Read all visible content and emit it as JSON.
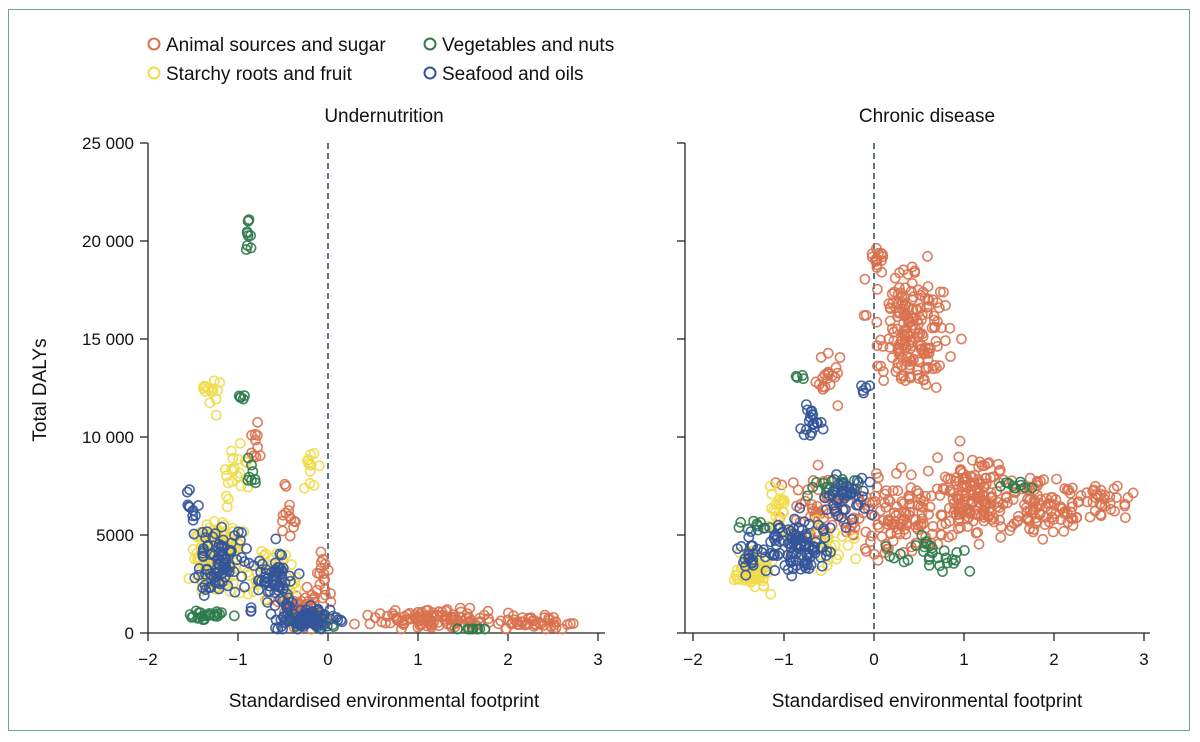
{
  "legend": [
    {
      "label": "Animal sources and sugar",
      "color": "#d9714e"
    },
    {
      "label": "Vegetables and nuts",
      "color": "#2e7a4a"
    },
    {
      "label": "Starchy roots and fruit",
      "color": "#f0dc4a"
    },
    {
      "label": "Seafood and oils",
      "color": "#33549a"
    }
  ],
  "chart_data": [
    {
      "type": "scatter",
      "title": "Undernutrition",
      "xlabel": "Standardised environmental footprint",
      "ylabel": "Total DALYs",
      "xlim": [
        -2,
        3.1
      ],
      "ylim": [
        0,
        25000
      ],
      "xticks": [
        "−2",
        "−1",
        "0",
        "1",
        "2",
        "3"
      ],
      "yticks": [
        "0",
        "5000",
        "10 000",
        "15 000",
        "20 000",
        "25 000"
      ],
      "reference_line_x": 0,
      "grid": false,
      "series": [
        {
          "name": "Animal sources and sugar",
          "clusters": [
            {
              "center": [
                -0.3,
                1200
              ],
              "spread": [
                0.25,
                900
              ],
              "n": 60
            },
            {
              "center": [
                1.2,
                700
              ],
              "spread": [
                0.6,
                400
              ],
              "n": 110
            },
            {
              "center": [
                2.3,
                500
              ],
              "spread": [
                0.35,
                350
              ],
              "n": 45
            },
            {
              "center": [
                -0.8,
                9800
              ],
              "spread": [
                0.06,
                900
              ],
              "n": 10
            },
            {
              "center": [
                -0.45,
                6000
              ],
              "spread": [
                0.1,
                1200
              ],
              "n": 14
            },
            {
              "center": [
                -0.05,
                3000
              ],
              "spread": [
                0.08,
                1200
              ],
              "n": 16
            }
          ]
        },
        {
          "name": "Vegetables and nuts",
          "clusters": [
            {
              "center": [
                -0.88,
                20300
              ],
              "spread": [
                0.03,
                1000
              ],
              "n": 10
            },
            {
              "center": [
                -0.95,
                12100
              ],
              "spread": [
                0.04,
                150
              ],
              "n": 5
            },
            {
              "center": [
                -0.85,
                8000
              ],
              "spread": [
                0.05,
                900
              ],
              "n": 8
            },
            {
              "center": [
                -1.3,
                900
              ],
              "spread": [
                0.2,
                300
              ],
              "n": 25
            },
            {
              "center": [
                -0.2,
                600
              ],
              "spread": [
                0.3,
                400
              ],
              "n": 25
            },
            {
              "center": [
                1.6,
                150
              ],
              "spread": [
                0.2,
                80
              ],
              "n": 10
            }
          ]
        },
        {
          "name": "Starchy roots and fruit",
          "clusters": [
            {
              "center": [
                -1.25,
                3800
              ],
              "spread": [
                0.22,
                1500
              ],
              "n": 160
            },
            {
              "center": [
                -1.3,
                12200
              ],
              "spread": [
                0.12,
                900
              ],
              "n": 14
            },
            {
              "center": [
                -1.05,
                8200
              ],
              "spread": [
                0.12,
                1300
              ],
              "n": 20
            },
            {
              "center": [
                -0.2,
                8200
              ],
              "spread": [
                0.08,
                1300
              ],
              "n": 12
            },
            {
              "center": [
                -0.6,
                3000
              ],
              "spread": [
                0.2,
                1300
              ],
              "n": 40
            }
          ]
        },
        {
          "name": "Seafood and oils",
          "clusters": [
            {
              "center": [
                -1.2,
                3600
              ],
              "spread": [
                0.25,
                1600
              ],
              "n": 90
            },
            {
              "center": [
                -0.6,
                2600
              ],
              "spread": [
                0.25,
                1300
              ],
              "n": 70
            },
            {
              "center": [
                -0.2,
                700
              ],
              "spread": [
                0.3,
                500
              ],
              "n": 80
            },
            {
              "center": [
                -1.5,
                6500
              ],
              "spread": [
                0.05,
                700
              ],
              "n": 10
            }
          ]
        }
      ]
    },
    {
      "type": "scatter",
      "title": "Chronic disease",
      "xlabel": "Standardised environmental footprint",
      "ylabel": "",
      "xlim": [
        -2,
        3.1
      ],
      "ylim": [
        0,
        25000
      ],
      "xticks": [
        "−2",
        "−1",
        "0",
        "1",
        "2",
        "3"
      ],
      "reference_line_x": 0,
      "grid": false,
      "series": [
        {
          "name": "Animal sources and sugar",
          "clusters": [
            {
              "center": [
                0.4,
                15500
              ],
              "spread": [
                0.35,
                2600
              ],
              "n": 180
            },
            {
              "center": [
                0.05,
                19000
              ],
              "spread": [
                0.1,
                700
              ],
              "n": 15
            },
            {
              "center": [
                1.1,
                7000
              ],
              "spread": [
                0.35,
                1700
              ],
              "n": 150
            },
            {
              "center": [
                1.9,
                6500
              ],
              "spread": [
                0.4,
                1400
              ],
              "n": 90
            },
            {
              "center": [
                2.5,
                6800
              ],
              "spread": [
                0.3,
                900
              ],
              "n": 35
            },
            {
              "center": [
                0.3,
                6000
              ],
              "spread": [
                0.5,
                1800
              ],
              "n": 120
            },
            {
              "center": [
                -0.6,
                6500
              ],
              "spread": [
                0.4,
                1600
              ],
              "n": 60
            },
            {
              "center": [
                -0.5,
                13000
              ],
              "spread": [
                0.15,
                1500
              ],
              "n": 20
            }
          ]
        },
        {
          "name": "Vegetables and nuts",
          "clusters": [
            {
              "center": [
                -0.85,
                13100
              ],
              "spread": [
                0.06,
                300
              ],
              "n": 4
            },
            {
              "center": [
                -0.4,
                7500
              ],
              "spread": [
                0.3,
                400
              ],
              "n": 20
            },
            {
              "center": [
                0.6,
                4000
              ],
              "spread": [
                0.4,
                800
              ],
              "n": 30
            },
            {
              "center": [
                1.6,
                7500
              ],
              "spread": [
                0.15,
                200
              ],
              "n": 10
            },
            {
              "center": [
                -1.3,
                5500
              ],
              "spread": [
                0.15,
                300
              ],
              "n": 10
            }
          ]
        },
        {
          "name": "Starchy roots and fruit",
          "clusters": [
            {
              "center": [
                -1.35,
                3200
              ],
              "spread": [
                0.15,
                700
              ],
              "n": 90
            },
            {
              "center": [
                -1.05,
                6000
              ],
              "spread": [
                0.1,
                1500
              ],
              "n": 25
            },
            {
              "center": [
                -0.55,
                4500
              ],
              "spread": [
                0.2,
                1000
              ],
              "n": 30
            }
          ]
        },
        {
          "name": "Seafood and oils",
          "clusters": [
            {
              "center": [
                -0.85,
                4500
              ],
              "spread": [
                0.35,
                1200
              ],
              "n": 110
            },
            {
              "center": [
                -0.7,
                10800
              ],
              "spread": [
                0.1,
                800
              ],
              "n": 20
            },
            {
              "center": [
                -0.1,
                12500
              ],
              "spread": [
                0.05,
                500
              ],
              "n": 5
            },
            {
              "center": [
                -0.3,
                7000
              ],
              "spread": [
                0.25,
                1200
              ],
              "n": 40
            },
            {
              "center": [
                -1.4,
                4000
              ],
              "spread": [
                0.1,
                900
              ],
              "n": 20
            }
          ]
        }
      ]
    }
  ]
}
